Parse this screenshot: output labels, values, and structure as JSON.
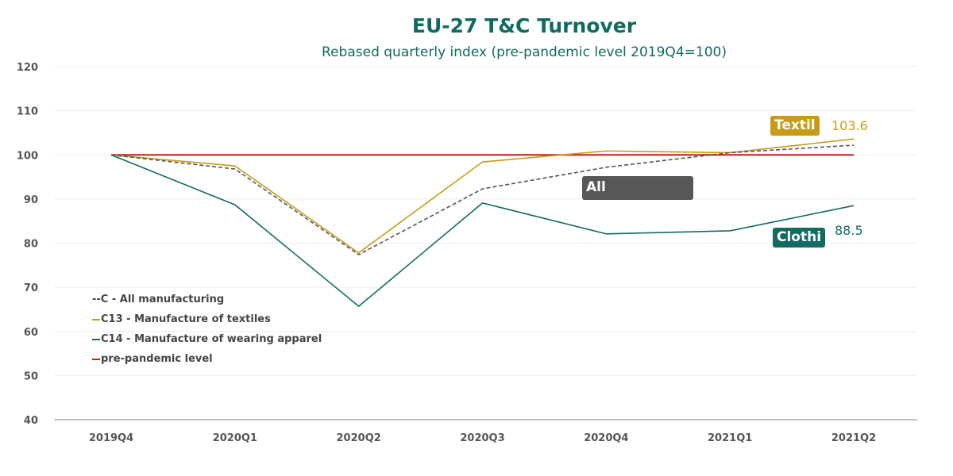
{
  "chart_data": {
    "type": "line",
    "title": "EU-27 T&C Turnover",
    "subtitle": "Rebased quarterly index (pre-pandemic level 2019Q4=100)",
    "categories": [
      "2019Q4",
      "2020Q1",
      "2020Q2",
      "2020Q3",
      "2020Q4",
      "2021Q1",
      "2021Q2"
    ],
    "ylim": [
      40,
      120
    ],
    "yticks": [
      40,
      50,
      60,
      70,
      80,
      90,
      100,
      110,
      120
    ],
    "grid": true,
    "legend_position": "bottom-left",
    "series": [
      {
        "name": "--C - All manufacturing",
        "color": "#555555",
        "dashed": true,
        "values": [
          100,
          96.8,
          77.4,
          92.3,
          97.2,
          100.5,
          102.2
        ]
      },
      {
        "name": "C13 - Manufacture of textiles",
        "color": "#c89b16",
        "values": [
          100,
          97.5,
          77.8,
          98.4,
          100.9,
          100.5,
          103.6
        ]
      },
      {
        "name": "C14 - Manufacture of wearing apparel",
        "color": "#136b62",
        "values": [
          100,
          88.7,
          65.7,
          89.1,
          82.1,
          82.8,
          88.5
        ]
      },
      {
        "name": "pre-pandemic level",
        "color": "#c0201e",
        "values": [
          100,
          100,
          100,
          100,
          100,
          100,
          100
        ]
      }
    ],
    "annotations": {
      "textiles_tag": "Textil",
      "textiles_value": "103.6",
      "all_tag": "All",
      "clothing_tag": "Clothi",
      "clothing_value": "88.5"
    }
  }
}
